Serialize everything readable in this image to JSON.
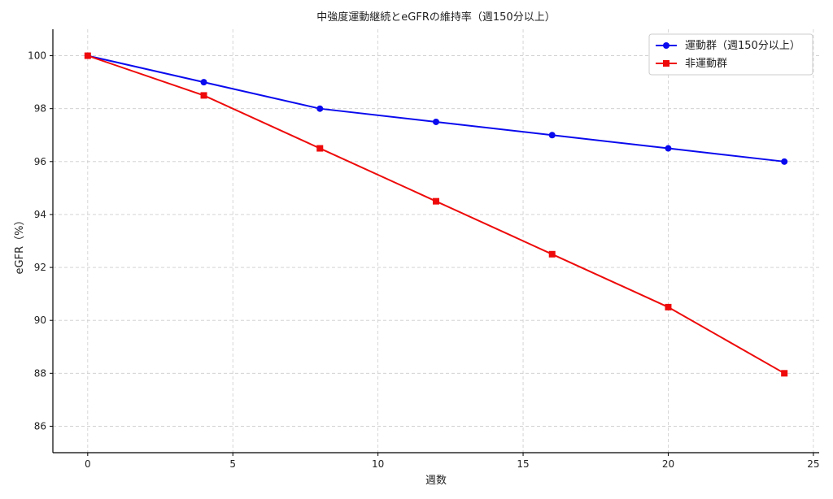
{
  "chart_data": {
    "type": "line",
    "title": "中強度運動継続とeGFRの維持率（週150分以上）",
    "xlabel": "週数",
    "ylabel": "eGFR（%）",
    "xlim": [
      -1.2,
      25.2
    ],
    "ylim": [
      85,
      101
    ],
    "xticks": [
      0,
      5,
      10,
      15,
      20,
      25
    ],
    "yticks": [
      86,
      88,
      90,
      92,
      94,
      96,
      98,
      100
    ],
    "grid": true,
    "legend_position": "top-right",
    "x": [
      0,
      4,
      8,
      12,
      16,
      20,
      24
    ],
    "series": [
      {
        "name": "運動群（週150分以上）",
        "color": "#0a0aee",
        "marker": "circle",
        "values": [
          100,
          99,
          98,
          97.5,
          97,
          96.5,
          96
        ]
      },
      {
        "name": "非運動群",
        "color": "#ee0a0a",
        "marker": "square",
        "values": [
          100,
          98.5,
          96.5,
          94.5,
          92.5,
          90.5,
          88
        ]
      }
    ]
  }
}
